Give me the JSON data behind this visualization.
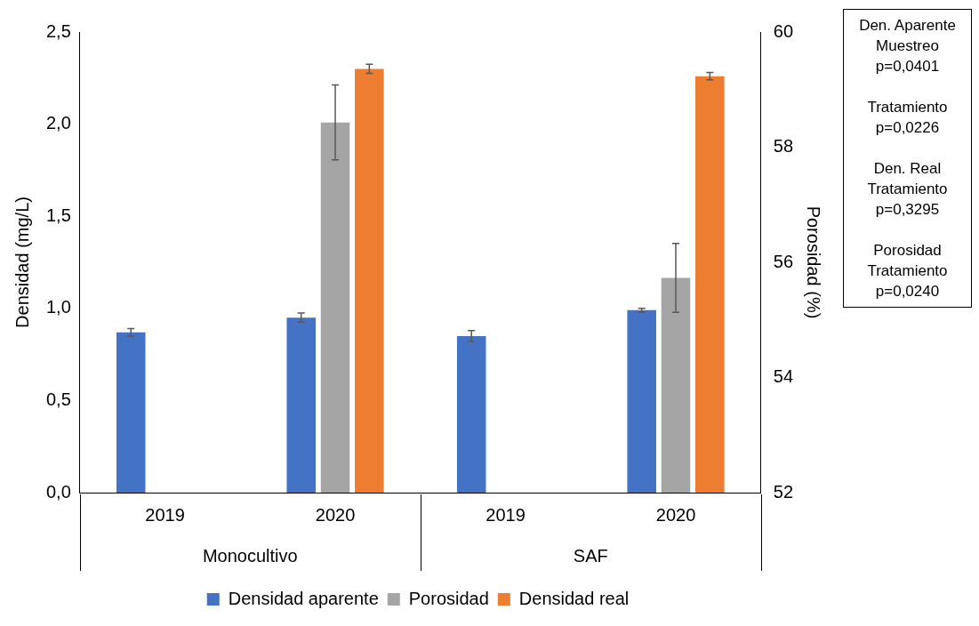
{
  "chart_data": {
    "type": "bar",
    "ylabel": "Densidad (mg/L)",
    "y2label": "Porosidad (%)",
    "categories": [
      "2019",
      "2020",
      "2019",
      "2020"
    ],
    "series": [
      {
        "name": "Densidad aparente",
        "color": "#4472c4",
        "values": [
          0.87,
          0.95,
          0.85,
          0.99
        ],
        "errors": [
          0.02,
          0.025,
          0.03,
          0.01
        ]
      },
      {
        "name": "Porosidad",
        "color": "#a5a5a5",
        "axis": "y2",
        "values": [
          null,
          58.43,
          null,
          55.73
        ],
        "errors": [
          null,
          0.65,
          null,
          0.6
        ]
      },
      {
        "name": "Densidad real",
        "color": "#ed7d31",
        "values": [
          null,
          2.3,
          null,
          2.26
        ],
        "errors": [
          null,
          0.025,
          null,
          0.02
        ]
      }
    ],
    "ylim": [
      0,
      2.5
    ],
    "yticks": [
      {
        "value": 0,
        "label": "0,0"
      },
      {
        "value": 0.5,
        "label": "0,5"
      },
      {
        "value": 1,
        "label": "1,0"
      },
      {
        "value": 1.5,
        "label": "1,5"
      },
      {
        "value": 2,
        "label": "2,0"
      },
      {
        "value": 2.5,
        "label": "2,5"
      }
    ],
    "y2lim": [
      52,
      60
    ],
    "y2ticks": [
      52,
      54,
      56,
      58,
      60
    ],
    "grid": false,
    "legend": "bottom",
    "annotations": [
      "Monocultivo",
      "SAF",
      "Den. Aparente\nMuestreo\np=0,0401",
      "Tratamiento\np=0,0226",
      "Den. Real\nTratamiento\np=0,3295",
      "Porosidad\nTratamiento\np=0,0240"
    ]
  }
}
